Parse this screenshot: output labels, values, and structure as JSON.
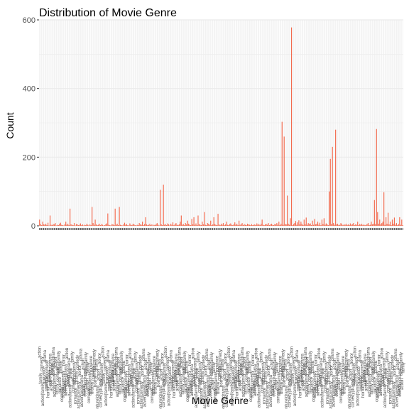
{
  "chart_data": {
    "type": "bar",
    "title": "Distribution of Movie Genre",
    "xlabel": "Movie Genre",
    "ylabel": "Count",
    "ylim": [
      0,
      600
    ],
    "yticks": [
      0,
      200,
      400,
      600
    ],
    "grid": true,
    "legend": "none",
    "bar_color": "#f26b4f",
    "grid_color": "#ebebeb",
    "categories_legible": false,
    "categories_visible_fragments": [
      "action",
      "action|comedy",
      "action|family",
      "adventure|drama",
      "comedy",
      "comedy|drama",
      "drama",
      "family",
      "horror",
      "romance"
    ],
    "values": [
      18,
      5,
      2,
      12,
      4,
      3,
      6,
      2,
      9,
      1,
      30,
      3,
      2,
      5,
      4,
      8,
      1,
      3,
      2,
      6,
      9,
      3,
      2,
      1,
      4,
      12,
      3,
      6,
      2,
      50,
      4,
      3,
      2,
      8,
      1,
      5,
      4,
      2,
      3,
      7,
      2,
      4,
      1,
      3,
      2,
      6,
      3,
      1,
      4,
      2,
      55,
      8,
      3,
      18,
      4,
      2,
      3,
      6,
      2,
      5,
      3,
      1,
      2,
      4,
      7,
      36,
      3,
      2,
      1,
      5,
      4,
      2,
      50,
      3,
      6,
      2,
      55,
      3,
      2,
      1,
      4,
      9,
      3,
      5,
      2,
      1,
      7,
      3,
      2,
      6,
      4,
      2,
      1,
      3,
      2,
      8,
      4,
      3,
      12,
      2,
      5,
      25,
      4,
      2,
      3,
      6,
      2,
      4,
      1,
      3,
      2,
      5,
      8,
      3,
      1,
      105,
      4,
      2,
      120,
      3,
      5,
      2,
      7,
      4,
      1,
      6,
      3,
      10,
      2,
      5,
      8,
      3,
      2,
      4,
      12,
      30,
      3,
      5,
      2,
      8,
      4,
      15,
      6,
      3,
      2,
      20,
      4,
      25,
      3,
      7,
      2,
      30,
      5,
      3,
      2,
      12,
      4,
      40,
      3,
      2,
      8,
      6,
      3,
      15,
      2,
      4,
      25,
      5,
      3,
      2,
      35,
      4,
      2,
      6,
      3,
      8,
      2,
      4,
      12,
      3,
      2,
      5,
      7,
      3,
      2,
      4,
      10,
      3,
      6,
      2,
      15,
      3,
      4,
      8,
      2,
      5,
      3,
      2,
      6,
      4,
      3,
      2,
      5,
      2,
      3,
      4,
      2,
      7,
      3,
      5,
      2,
      6,
      18,
      3,
      2,
      4,
      5,
      3,
      8,
      2,
      4,
      6,
      3,
      2,
      5,
      4,
      8,
      3,
      12,
      2,
      6,
      303,
      3,
      260,
      5,
      4,
      88,
      6,
      3,
      22,
      578,
      2,
      5,
      8,
      14,
      3,
      10,
      16,
      4,
      12,
      6,
      2,
      18,
      4,
      24,
      3,
      8,
      5,
      7,
      2,
      15,
      3,
      20,
      4,
      6,
      12,
      3,
      9,
      2,
      18,
      5,
      22,
      3,
      7,
      4,
      2,
      100,
      195,
      5,
      230,
      8,
      3,
      280,
      4,
      6,
      2,
      3,
      8,
      5,
      2,
      4,
      3,
      6,
      2,
      4,
      2,
      7,
      3,
      5,
      8,
      2,
      4,
      3,
      12,
      2,
      5,
      3,
      6,
      2,
      4,
      2,
      3,
      5,
      8,
      2,
      3,
      12,
      4,
      6,
      75,
      5,
      282,
      40,
      6,
      18,
      4,
      8,
      12,
      98,
      3,
      25,
      6,
      38,
      4,
      12,
      2,
      18,
      6,
      24,
      3,
      8,
      2,
      5,
      25,
      3,
      18,
      2
    ]
  }
}
